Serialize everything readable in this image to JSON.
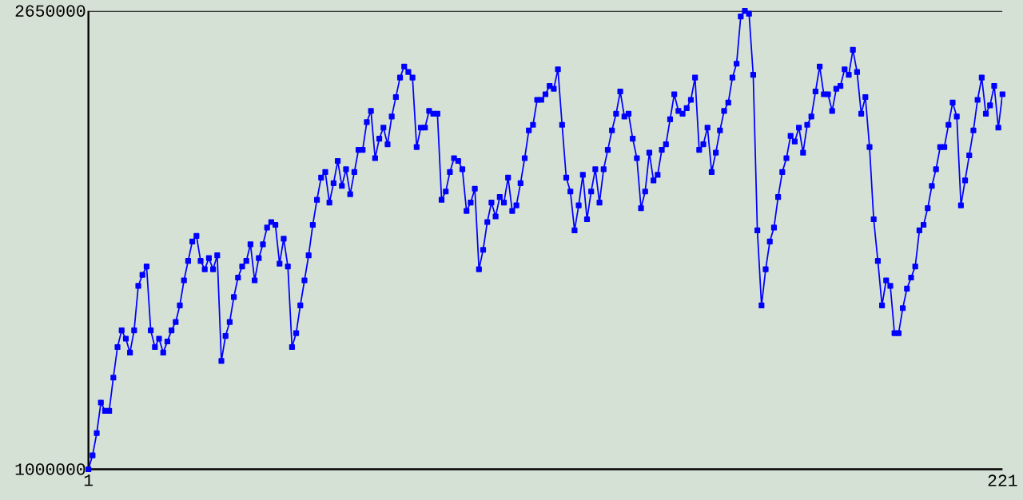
{
  "chart_data": {
    "type": "line",
    "x": [
      1,
      2,
      3,
      4,
      5,
      6,
      7,
      8,
      9,
      10,
      11,
      12,
      13,
      14,
      15,
      16,
      17,
      18,
      19,
      20,
      21,
      22,
      23,
      24,
      25,
      26,
      27,
      28,
      29,
      30,
      31,
      32,
      33,
      34,
      35,
      36,
      37,
      38,
      39,
      40,
      41,
      42,
      43,
      44,
      45,
      46,
      47,
      48,
      49,
      50,
      51,
      52,
      53,
      54,
      55,
      56,
      57,
      58,
      59,
      60,
      61,
      62,
      63,
      64,
      65,
      66,
      67,
      68,
      69,
      70,
      71,
      72,
      73,
      74,
      75,
      76,
      77,
      78,
      79,
      80,
      81,
      82,
      83,
      84,
      85,
      86,
      87,
      88,
      89,
      90,
      91,
      92,
      93,
      94,
      95,
      96,
      97,
      98,
      99,
      100,
      101,
      102,
      103,
      104,
      105,
      106,
      107,
      108,
      109,
      110,
      111,
      112,
      113,
      114,
      115,
      116,
      117,
      118,
      119,
      120,
      121,
      122,
      123,
      124,
      125,
      126,
      127,
      128,
      129,
      130,
      131,
      132,
      133,
      134,
      135,
      136,
      137,
      138,
      139,
      140,
      141,
      142,
      143,
      144,
      145,
      146,
      147,
      148,
      149,
      150,
      151,
      152,
      153,
      154,
      155,
      156,
      157,
      158,
      159,
      160,
      161,
      162,
      163,
      164,
      165,
      166,
      167,
      168,
      169,
      170,
      171,
      172,
      173,
      174,
      175,
      176,
      177,
      178,
      179,
      180,
      181,
      182,
      183,
      184,
      185,
      186,
      187,
      188,
      189,
      190,
      191,
      192,
      193,
      194,
      195,
      196,
      197,
      198,
      199,
      200,
      201,
      202,
      203,
      204,
      205,
      206,
      207,
      208,
      209,
      210,
      211,
      212,
      213,
      214,
      215,
      216,
      217,
      218,
      219,
      220,
      221
    ],
    "values": [
      1000000,
      1050000,
      1130000,
      1240000,
      1210000,
      1210000,
      1330000,
      1440000,
      1500000,
      1470000,
      1420000,
      1500000,
      1660000,
      1700000,
      1730000,
      1500000,
      1440000,
      1470000,
      1420000,
      1460000,
      1500000,
      1530000,
      1590000,
      1680000,
      1750000,
      1820000,
      1840000,
      1750000,
      1720000,
      1760000,
      1720000,
      1770000,
      1390000,
      1480000,
      1530000,
      1620000,
      1690000,
      1730000,
      1750000,
      1810000,
      1680000,
      1760000,
      1810000,
      1870000,
      1890000,
      1880000,
      1740000,
      1830000,
      1730000,
      1440000,
      1490000,
      1590000,
      1680000,
      1770000,
      1880000,
      1970000,
      2050000,
      2070000,
      1960000,
      2030000,
      2110000,
      2020000,
      2080000,
      1990000,
      2070000,
      2150000,
      2150000,
      2250000,
      2290000,
      2120000,
      2190000,
      2230000,
      2170000,
      2270000,
      2340000,
      2410000,
      2450000,
      2430000,
      2410000,
      2160000,
      2230000,
      2230000,
      2290000,
      2280000,
      2280000,
      1970000,
      2000000,
      2070000,
      2120000,
      2110000,
      2080000,
      1930000,
      1960000,
      2010000,
      1720000,
      1790000,
      1890000,
      1960000,
      1910000,
      1980000,
      1960000,
      2050000,
      1930000,
      1950000,
      2030000,
      2120000,
      2220000,
      2240000,
      2330000,
      2330000,
      2350000,
      2380000,
      2370000,
      2440000,
      2240000,
      2050000,
      2000000,
      1860000,
      1950000,
      2060000,
      1900000,
      2000000,
      2080000,
      1960000,
      2080000,
      2150000,
      2220000,
      2280000,
      2360000,
      2270000,
      2280000,
      2190000,
      2120000,
      1940000,
      2000000,
      2140000,
      2040000,
      2060000,
      2150000,
      2170000,
      2260000,
      2350000,
      2290000,
      2280000,
      2300000,
      2330000,
      2410000,
      2150000,
      2170000,
      2230000,
      2070000,
      2140000,
      2220000,
      2290000,
      2320000,
      2410000,
      2460000,
      2630000,
      2650000,
      2640000,
      2420000,
      1860000,
      1590000,
      1720000,
      1820000,
      1870000,
      1980000,
      2070000,
      2120000,
      2200000,
      2180000,
      2230000,
      2140000,
      2240000,
      2270000,
      2360000,
      2450000,
      2350000,
      2350000,
      2290000,
      2370000,
      2380000,
      2440000,
      2420000,
      2510000,
      2430000,
      2280000,
      2340000,
      2160000,
      1900000,
      1750000,
      1590000,
      1680000,
      1660000,
      1490000,
      1490000,
      1580000,
      1650000,
      1690000,
      1730000,
      1860000,
      1880000,
      1940000,
      2020000,
      2080000,
      2160000,
      2160000,
      2240000,
      2320000,
      2270000,
      1950000,
      2040000,
      2130000,
      2220000,
      2330000,
      2410000,
      2280000,
      2310000,
      2380000,
      2230000,
      2350000
    ],
    "color": "#0000ff",
    "marker": "square",
    "xlim": [
      1,
      221
    ],
    "ylim": [
      1000000,
      2650000
    ],
    "xticks": [
      1,
      221
    ],
    "yticks": [
      1000000,
      2650000
    ]
  }
}
